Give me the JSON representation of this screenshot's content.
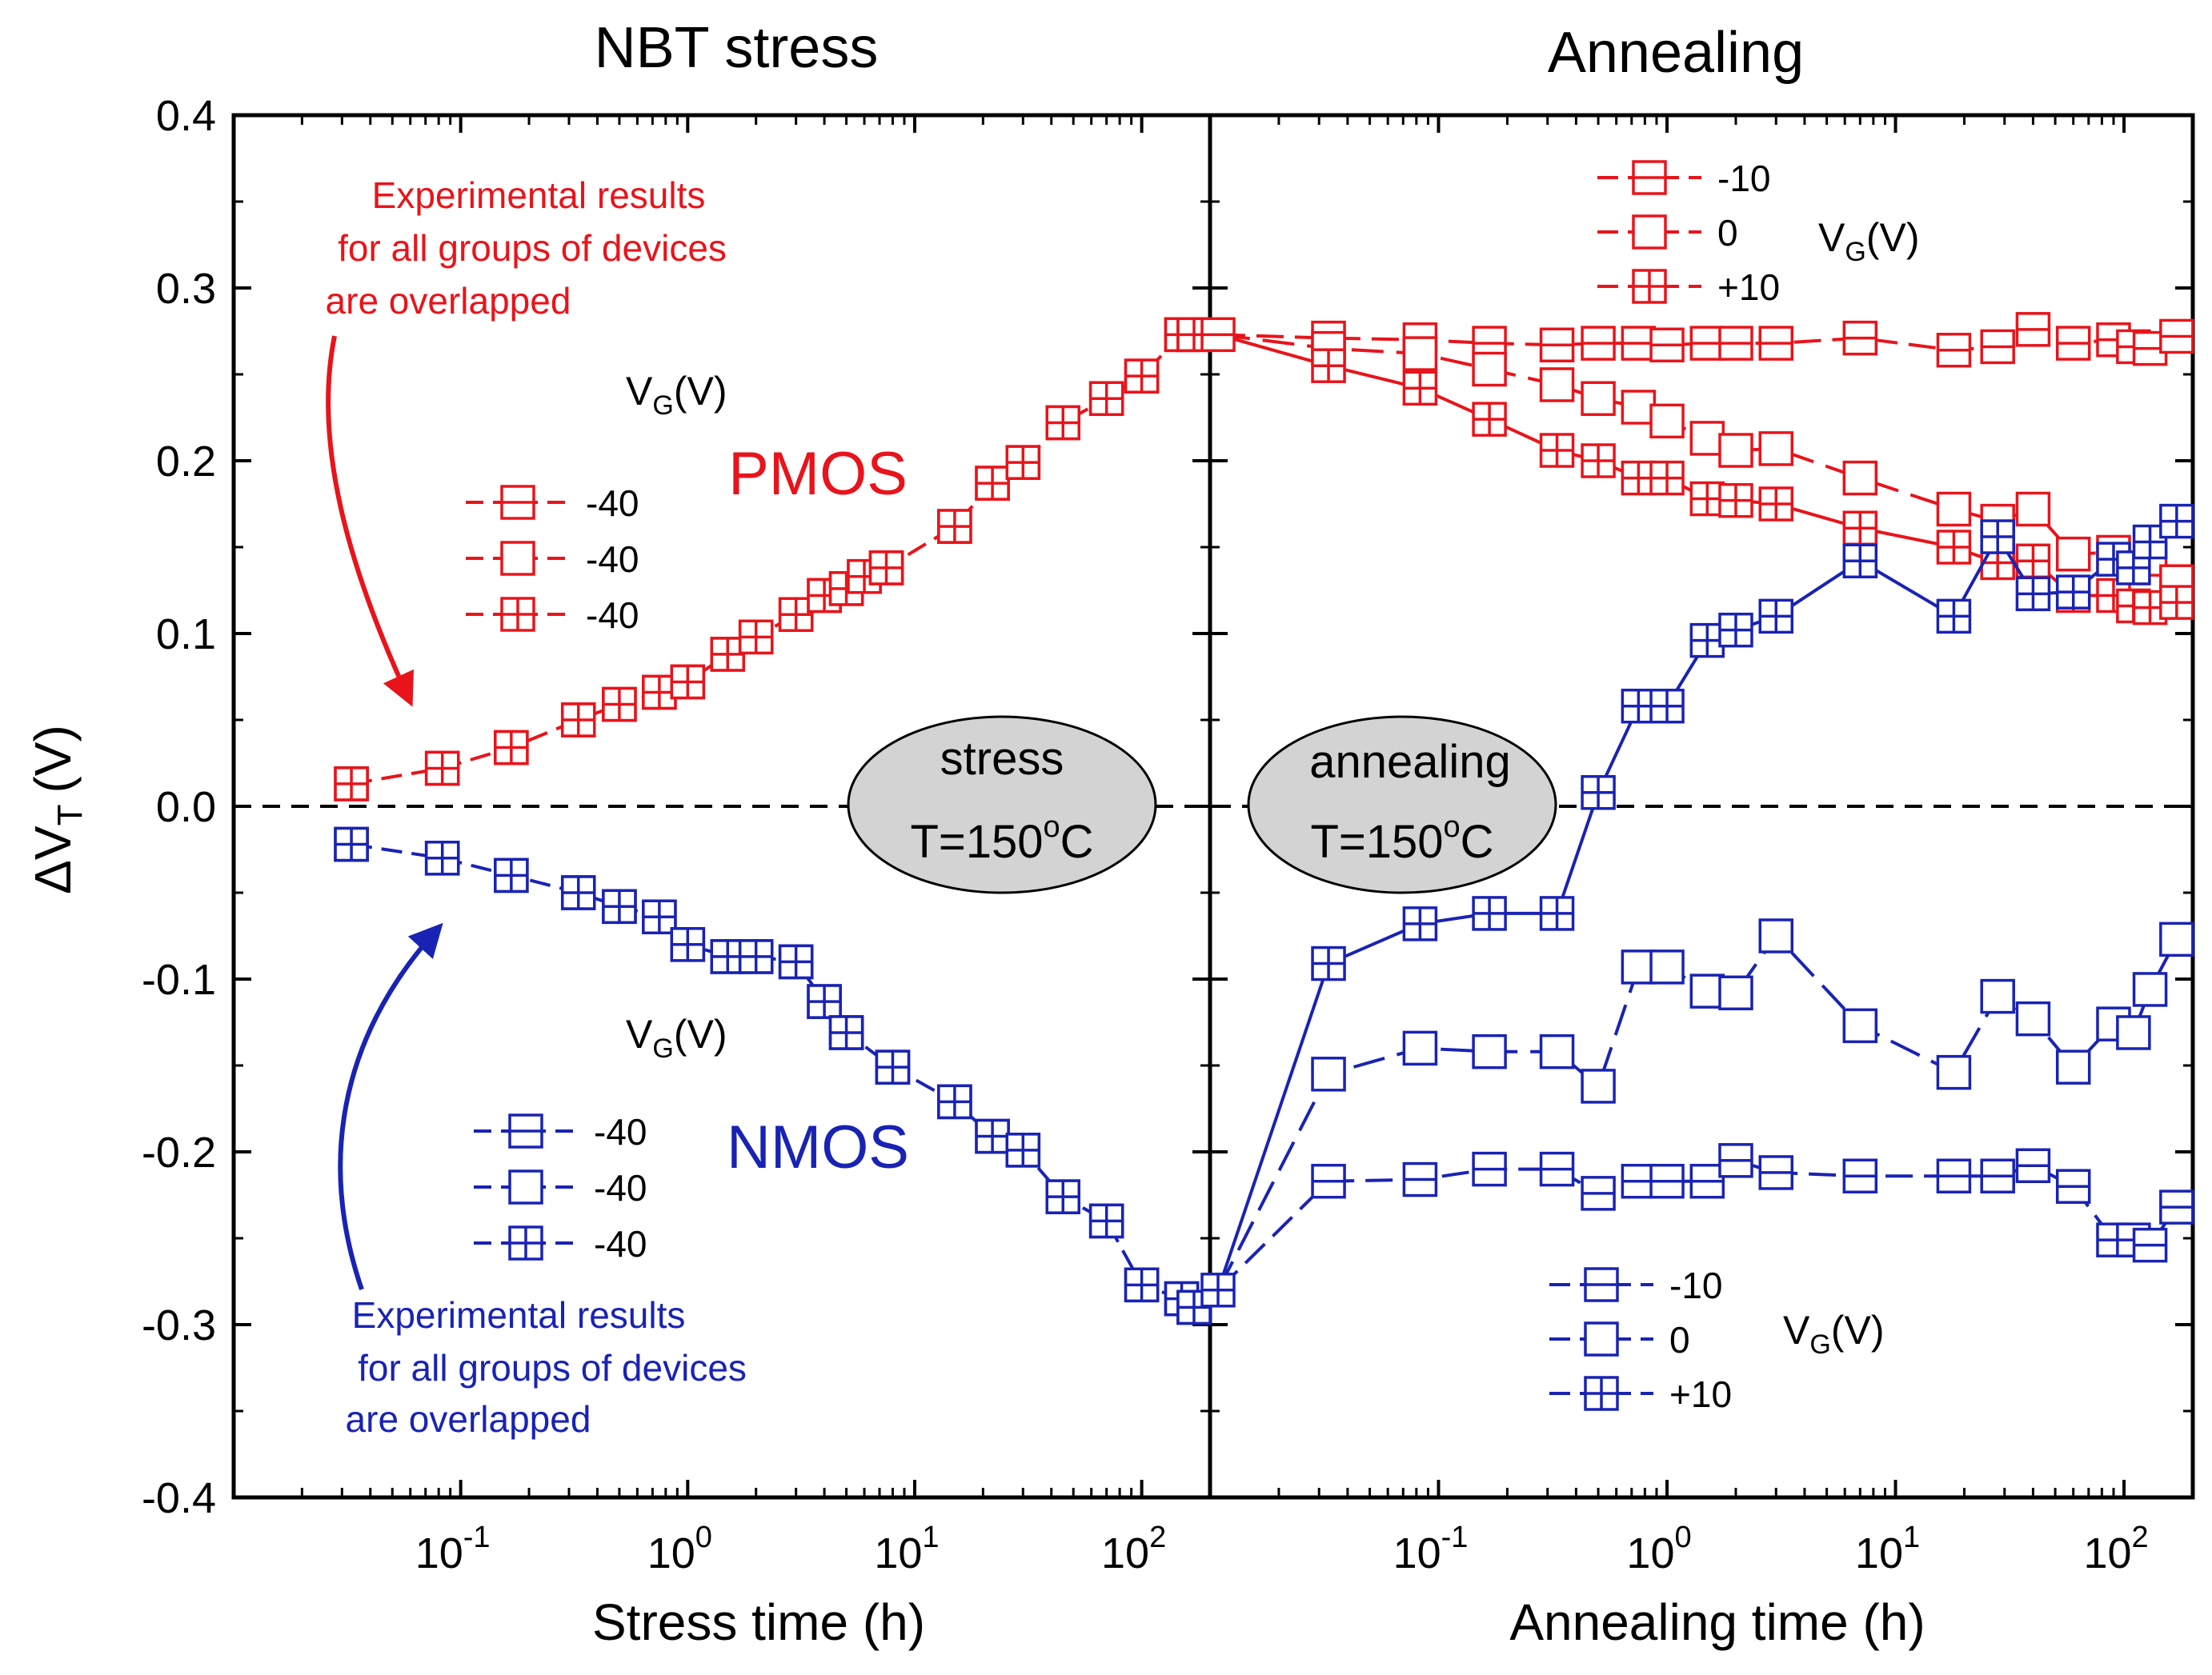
{
  "chart_data": [
    {
      "panel": "stress",
      "type": "scatter",
      "title": "NBT stress",
      "xlabel": "Stress time (h)",
      "ylabel_main": "ΔV",
      "ylabel_sub": "T",
      "ylabel_unit": "(V)",
      "xscale": "log",
      "xlim": [
        0.01,
        200
      ],
      "ylim": [
        -0.4,
        0.4
      ],
      "yticks": [
        "0.4",
        "0.3",
        "0.2",
        "0.1",
        "0.0",
        "-0.1",
        "-0.2",
        "-0.3",
        "-0.4"
      ],
      "xtick_labels": [
        {
          "base": "10",
          "exp": "-1"
        },
        {
          "base": "10",
          "exp": "0"
        },
        {
          "base": "10",
          "exp": "1"
        },
        {
          "base": "10",
          "exp": "2"
        }
      ],
      "series": [
        {
          "group": "PMOS",
          "color": "#e8141b",
          "x": [
            0.033,
            0.083,
            0.167,
            0.33,
            0.5,
            0.75,
            1.0,
            1.5,
            2.0,
            3.0,
            4.0,
            5.0,
            6.0,
            7.5,
            15,
            22,
            30,
            45,
            70,
            100,
            150,
            170
          ],
          "y": [
            0.013,
            0.022,
            0.034,
            0.05,
            0.059,
            0.066,
            0.072,
            0.088,
            0.098,
            0.111,
            0.122,
            0.126,
            0.133,
            0.138,
            0.162,
            0.187,
            0.199,
            0.222,
            0.236,
            0.249,
            0.273,
            0.273
          ]
        },
        {
          "group": "NMOS",
          "color": "#1923b3",
          "x": [
            0.033,
            0.083,
            0.167,
            0.33,
            0.5,
            0.75,
            1.0,
            1.5,
            2.0,
            3.0,
            4.0,
            5.0,
            8.0,
            15,
            22,
            30,
            45,
            70,
            100,
            150,
            170
          ],
          "y": [
            -0.022,
            -0.03,
            -0.04,
            -0.05,
            -0.058,
            -0.064,
            -0.08,
            -0.087,
            -0.087,
            -0.09,
            -0.113,
            -0.131,
            -0.151,
            -0.171,
            -0.191,
            -0.199,
            -0.226,
            -0.24,
            -0.277,
            -0.285,
            -0.29
          ]
        }
      ]
    },
    {
      "panel": "annealing",
      "type": "line",
      "title": "Annealing",
      "xlabel": "Annealing time (h)",
      "xscale": "log",
      "xlim": [
        0.01,
        200
      ],
      "ylim": [
        -0.4,
        0.4
      ],
      "start_values": {
        "pmos": 0.273,
        "nmos": -0.28
      },
      "xtick_labels": [
        {
          "base": "10",
          "exp": "-1"
        },
        {
          "base": "10",
          "exp": "0"
        },
        {
          "base": "10",
          "exp": "1"
        },
        {
          "base": "10",
          "exp": "2"
        }
      ],
      "series": [
        {
          "group": "PMOS",
          "vg": "-10",
          "marker": "h",
          "color": "#e8141b",
          "x": [
            0.033,
            0.083,
            0.167,
            0.33,
            0.5,
            0.75,
            1.0,
            1.5,
            2.0,
            3.0,
            7.0,
            18,
            28,
            40,
            60,
            90,
            110,
            130,
            170
          ],
          "y": [
            0.271,
            0.27,
            0.268,
            0.267,
            0.268,
            0.268,
            0.267,
            0.268,
            0.268,
            0.268,
            0.271,
            0.264,
            0.266,
            0.276,
            0.268,
            0.27,
            0.266,
            0.265,
            0.272
          ]
        },
        {
          "group": "PMOS",
          "vg": "0",
          "marker": "open",
          "color": "#e8141b",
          "x": [
            0.033,
            0.083,
            0.167,
            0.33,
            0.5,
            0.75,
            1.0,
            1.5,
            2.0,
            3.0,
            7.0,
            18,
            28,
            40,
            60,
            90,
            110,
            130,
            170
          ],
          "y": [
            0.265,
            0.262,
            0.253,
            0.244,
            0.236,
            0.231,
            0.223,
            0.213,
            0.206,
            0.207,
            0.19,
            0.172,
            0.165,
            0.172,
            0.146,
            0.147,
            0.138,
            0.143,
            0.13
          ]
        },
        {
          "group": "PMOS",
          "vg": "+10",
          "marker": "plus",
          "color": "#e8141b",
          "x": [
            0.033,
            0.083,
            0.167,
            0.33,
            0.5,
            0.75,
            1.0,
            1.5,
            2.0,
            3.0,
            7.0,
            18,
            28,
            40,
            60,
            90,
            110,
            130,
            170
          ],
          "y": [
            0.255,
            0.242,
            0.224,
            0.206,
            0.2,
            0.19,
            0.19,
            0.178,
            0.177,
            0.175,
            0.161,
            0.15,
            0.141,
            0.142,
            0.122,
            0.122,
            0.116,
            0.115,
            0.118
          ]
        },
        {
          "group": "NMOS",
          "vg": "-10",
          "marker": "h",
          "color": "#1923b3",
          "x": [
            0.033,
            0.083,
            0.167,
            0.33,
            0.5,
            0.75,
            1.0,
            1.5,
            2.0,
            3.0,
            7.0,
            18,
            28,
            40,
            60,
            90,
            110,
            130,
            170
          ],
          "y": [
            -0.217,
            -0.216,
            -0.21,
            -0.21,
            -0.224,
            -0.217,
            -0.217,
            -0.217,
            -0.205,
            -0.212,
            -0.214,
            -0.214,
            -0.214,
            -0.208,
            -0.22,
            -0.251,
            -0.251,
            -0.254,
            -0.232
          ]
        },
        {
          "group": "NMOS",
          "vg": "0",
          "marker": "open",
          "color": "#1923b3",
          "x": [
            0.033,
            0.083,
            0.167,
            0.33,
            0.5,
            0.75,
            1.0,
            1.5,
            2.0,
            3.0,
            7.0,
            18,
            28,
            40,
            60,
            90,
            110,
            130,
            170
          ],
          "y": [
            -0.155,
            -0.14,
            -0.142,
            -0.142,
            -0.162,
            -0.093,
            -0.093,
            -0.107,
            -0.108,
            -0.075,
            -0.127,
            -0.154,
            -0.11,
            -0.123,
            -0.151,
            -0.126,
            -0.131,
            -0.106,
            -0.077
          ]
        },
        {
          "group": "NMOS",
          "vg": "+10",
          "marker": "plus",
          "color": "#1923b3",
          "x": [
            0.033,
            0.083,
            0.167,
            0.33,
            0.5,
            0.75,
            1.0,
            1.5,
            2.0,
            3.0,
            7.0,
            18,
            28,
            40,
            60,
            90,
            110,
            130,
            170
          ],
          "y": [
            -0.091,
            -0.068,
            -0.062,
            -0.062,
            0.008,
            0.058,
            0.058,
            0.096,
            0.102,
            0.11,
            0.142,
            0.11,
            0.156,
            0.123,
            0.124,
            0.143,
            0.138,
            0.153,
            0.165
          ]
        }
      ]
    }
  ],
  "annotations": {
    "pmos_label": "PMOS",
    "nmos_label": "NMOS",
    "exp_note_lines": [
      "Experimental results",
      "for all groups of devices",
      "are overlapped"
    ],
    "stress_box": {
      "line1": "stress",
      "line2_main": "T=150",
      "line2_sup": "o",
      "line2_tail": "C"
    },
    "anneal_box": {
      "line1": "annealing",
      "line2_main": "T=150",
      "line2_sup": "o",
      "line2_tail": "C"
    },
    "vg_label": {
      "main": "V",
      "sub": "G",
      "tail": "(V)"
    }
  },
  "legends": {
    "stress_pmos": [
      "-40",
      "-40",
      "-40"
    ],
    "stress_nmos": [
      "-40",
      "-40",
      "-40"
    ],
    "anneal_pmos": [
      "-10",
      "0",
      "+10"
    ],
    "anneal_nmos": [
      "-10",
      "0",
      "+10"
    ]
  },
  "colors": {
    "pmos": "#e8141b",
    "nmos": "#1923b3",
    "axis": "#000000",
    "box_fill": "#d3d3d3"
  }
}
